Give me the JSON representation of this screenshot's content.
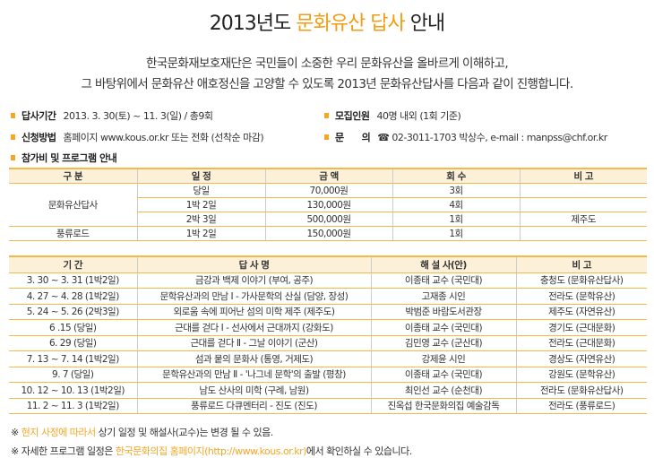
{
  "title": {
    "pre": "2013년도 ",
    "highlight": "문화유산 답사",
    "post": " 안내"
  },
  "intro": [
    "한국문화재보호재단은 국민들이 소중한 우리 문화유산을 올바르게 이해하고,",
    "그 바탕위에서 문화유산 애호정신을 고양할 수 있도록 2013년 문화유산답사를 다음과 같이 진행합니다."
  ],
  "info": {
    "period": {
      "label": "답사기간",
      "value": "2013. 3. 30(토) ~ 11. 3(일) / 총9회"
    },
    "capacity": {
      "label": "모집인원",
      "value": "40명 내외 (1회 기준)"
    },
    "apply": {
      "label": "신청방법",
      "value": "홈페이지 www.kous.or.kr 또는 전화 (선착순 마감)"
    },
    "contact": {
      "label": "문      의",
      "value": "☎ 02-3011-1703 박상수, e-mail : manpss@chf.or.kr"
    },
    "program": {
      "label": "참가비 및 프로그램 안내"
    }
  },
  "accent_color": "#f5a623",
  "fees": {
    "headers": [
      "구 분",
      "일 정",
      "금 액",
      "회 수",
      "비 고"
    ],
    "group1": "문화유산답사",
    "group2": "풍류로드",
    "rows": [
      [
        "당일",
        "70,000원",
        "3회",
        ""
      ],
      [
        "1박 2일",
        "130,000원",
        "4회",
        ""
      ],
      [
        "2박 3일",
        "500,000원",
        "1회",
        "제주도"
      ],
      [
        "1박 2일",
        "150,000원",
        "1회",
        ""
      ]
    ]
  },
  "schedule": {
    "headers": [
      "기 간",
      "답 사 명",
      "해 설 사(안)",
      "비 고"
    ],
    "rows": [
      [
        "3. 30 ~ 3. 31 (1박2일)",
        "금강과 백제 이야기 (부여, 공주)",
        "이종태 교수 (국민대)",
        "충청도 (문화유산답사)"
      ],
      [
        "4. 27 ~ 4. 28 (1박2일)",
        "문학유산과의 만남 Ⅰ - 가사문학의 산실 (담양, 장성)",
        "고재종 시인",
        "전라도 (문학유산)"
      ],
      [
        "5. 24 ~ 5. 26 (2박3일)",
        "외로움 속에 피어난 섬의 미학 제주 (제주도)",
        "박범준 바람도서관장",
        "제주도 (자연유산)"
      ],
      [
        "6 .15 (당일)",
        "근대를 걷다 Ⅰ - 선사에서 근대까지 (강화도)",
        "이종태 교수 (국민대)",
        "경기도 (근대문화)"
      ],
      [
        "6. 29 (당일)",
        "근대를 걷다 Ⅱ - 그날 이야기 (군산)",
        "김민영 교수 (군산대)",
        "전라도 (근대문화)"
      ],
      [
        "7. 13 ~ 7. 14 (1박2일)",
        "섬과 뭍의 문화사 (통영, 거제도)",
        "강제윤 시인",
        "경상도 (자연유산)"
      ],
      [
        "9. 7  (당일)",
        "문학유산과의 만남 Ⅱ - '나그네 문학'의 출발 (평창)",
        "이종태 교수 (국민대)",
        "강원도 (문학유산)"
      ],
      [
        "10. 12 ~ 10. 13 (1박2일)",
        "남도 산사의 미학 (구례, 남원)",
        "최인선 교수 (순천대)",
        "전라도 (문화유산답사)"
      ],
      [
        "11. 2 ~ 11. 3 (1박2일)",
        "풍류로드 다큐멘터리 - 진도 (진도)",
        "진옥섭 한국문화의집 예술감독",
        "전라도 (풍류로드)"
      ]
    ]
  },
  "notes": [
    {
      "mark": "※ ",
      "highlight": "현지 사정에 따라서",
      "rest": " 상기 일정 및 해설사(교수)는 변경 될 수 있음."
    },
    {
      "mark": "※ 자세한 프로그램 일정은 ",
      "highlight": "한국문화의집 홈페이지(http://www.kous.or.kr)",
      "rest": "에서 확인하실 수 있습니다."
    }
  ]
}
